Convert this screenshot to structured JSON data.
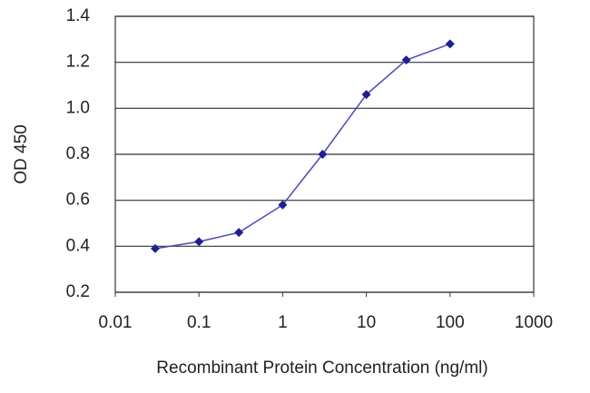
{
  "chart_data": {
    "type": "line",
    "x_label": "Recombinant Protein Concentration (ng/ml)",
    "y_label": "OD 450",
    "x": [
      0.03,
      0.1,
      0.3,
      1,
      3,
      10,
      30,
      100
    ],
    "series": [
      {
        "color": "#1f1f8f",
        "values": [
          0.39,
          0.42,
          0.46,
          0.58,
          0.8,
          1.06,
          1.21,
          1.28
        ]
      }
    ],
    "xlim": [
      0.01,
      1000
    ],
    "xticks": [
      0.01,
      0.1,
      1,
      10,
      100,
      1000
    ],
    "x_scale": "log",
    "ylim": [
      0.2,
      1.4
    ],
    "yticks": [
      0.2,
      0.4,
      0.6,
      0.8,
      {
        "value": 1,
        "label": "1.0"
      },
      1.2,
      1.4
    ],
    "grid": true
  }
}
